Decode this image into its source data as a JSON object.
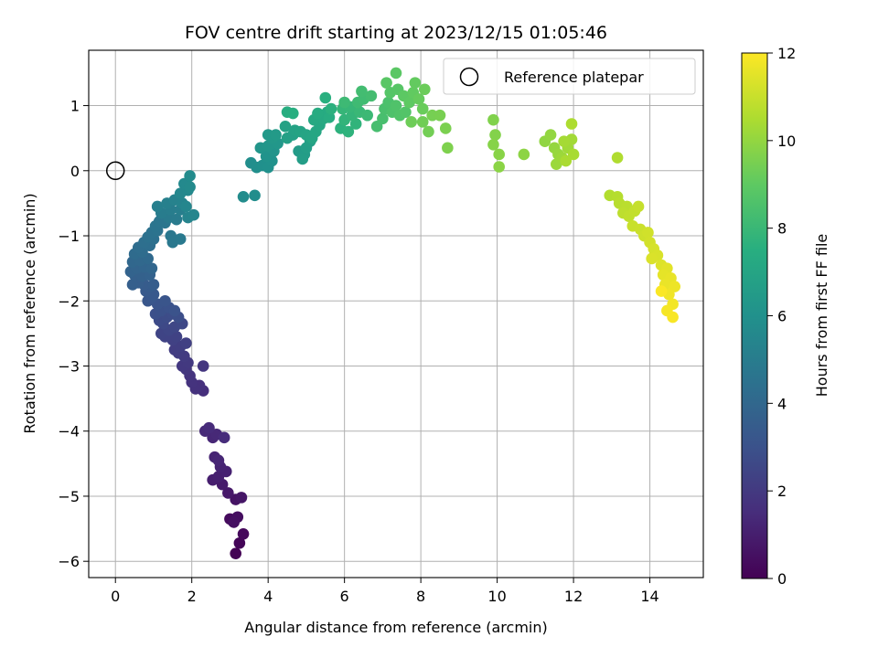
{
  "chart_data": {
    "type": "scatter",
    "title": "FOV centre drift starting at 2023/12/15 01:05:46",
    "xlabel": "Angular distance from reference (arcmin)",
    "ylabel": "Rotation from reference (arcmin)",
    "xlim": [
      -0.7,
      15.4
    ],
    "ylim": [
      -6.25,
      1.85
    ],
    "xticks": [
      0,
      2,
      4,
      6,
      8,
      10,
      12,
      14
    ],
    "yticks": [
      1,
      0,
      -1,
      -2,
      -3,
      -4,
      -5,
      -6
    ],
    "grid": true,
    "legend": {
      "placement": "top-right",
      "entries": [
        {
          "label": "Reference platepar",
          "marker": "open-circle"
        }
      ]
    },
    "reference_point": {
      "x": 0,
      "y": 0
    },
    "colorbar": {
      "label": "Hours from first FF file",
      "colormap": "viridis",
      "range": [
        0,
        12
      ],
      "ticks": [
        0,
        2,
        4,
        6,
        8,
        10,
        12
      ]
    },
    "points": [
      {
        "x": 3.15,
        "y": -5.88,
        "c": 0.05
      },
      {
        "x": 3.25,
        "y": -5.72,
        "c": 0.15
      },
      {
        "x": 3.35,
        "y": -5.58,
        "c": 0.25
      },
      {
        "x": 3.0,
        "y": -5.35,
        "c": 0.35
      },
      {
        "x": 3.2,
        "y": -5.32,
        "c": 0.45
      },
      {
        "x": 3.1,
        "y": -5.4,
        "c": 0.5
      },
      {
        "x": 3.15,
        "y": -5.05,
        "c": 0.6
      },
      {
        "x": 3.3,
        "y": -5.02,
        "c": 0.7
      },
      {
        "x": 2.95,
        "y": -4.95,
        "c": 0.8
      },
      {
        "x": 2.8,
        "y": -4.82,
        "c": 0.9
      },
      {
        "x": 2.55,
        "y": -4.75,
        "c": 1.0
      },
      {
        "x": 2.7,
        "y": -4.7,
        "c": 1.05
      },
      {
        "x": 2.9,
        "y": -4.62,
        "c": 1.1
      },
      {
        "x": 2.75,
        "y": -4.55,
        "c": 1.15
      },
      {
        "x": 2.6,
        "y": -4.4,
        "c": 1.2
      },
      {
        "x": 2.7,
        "y": -4.45,
        "c": 1.25
      },
      {
        "x": 2.55,
        "y": -4.1,
        "c": 1.3
      },
      {
        "x": 2.65,
        "y": -4.05,
        "c": 1.35
      },
      {
        "x": 2.35,
        "y": -4.0,
        "c": 1.4
      },
      {
        "x": 2.45,
        "y": -3.95,
        "c": 1.45
      },
      {
        "x": 2.85,
        "y": -4.1,
        "c": 1.5
      },
      {
        "x": 2.3,
        "y": -3.38,
        "c": 1.6
      },
      {
        "x": 2.2,
        "y": -3.3,
        "c": 1.65
      },
      {
        "x": 2.1,
        "y": -3.35,
        "c": 1.7
      },
      {
        "x": 2.0,
        "y": -3.25,
        "c": 1.75
      },
      {
        "x": 1.95,
        "y": -3.15,
        "c": 1.8
      },
      {
        "x": 2.3,
        "y": -3.0,
        "c": 1.85
      },
      {
        "x": 1.85,
        "y": -3.05,
        "c": 1.9
      },
      {
        "x": 1.75,
        "y": -3.0,
        "c": 1.95
      },
      {
        "x": 1.9,
        "y": -2.95,
        "c": 2.0
      },
      {
        "x": 1.8,
        "y": -2.85,
        "c": 2.05
      },
      {
        "x": 1.65,
        "y": -2.8,
        "c": 2.1
      },
      {
        "x": 1.55,
        "y": -2.75,
        "c": 2.15
      },
      {
        "x": 1.7,
        "y": -2.7,
        "c": 2.2
      },
      {
        "x": 1.85,
        "y": -2.65,
        "c": 2.25
      },
      {
        "x": 1.5,
        "y": -2.6,
        "c": 2.3
      },
      {
        "x": 1.6,
        "y": -2.55,
        "c": 2.35
      },
      {
        "x": 1.3,
        "y": -2.55,
        "c": 2.4
      },
      {
        "x": 1.2,
        "y": -2.5,
        "c": 2.45
      },
      {
        "x": 1.4,
        "y": -2.45,
        "c": 2.5
      },
      {
        "x": 1.55,
        "y": -2.4,
        "c": 2.55
      },
      {
        "x": 1.75,
        "y": -2.35,
        "c": 2.6
      },
      {
        "x": 1.25,
        "y": -2.35,
        "c": 2.65
      },
      {
        "x": 1.15,
        "y": -2.3,
        "c": 2.7
      },
      {
        "x": 1.35,
        "y": -2.25,
        "c": 2.75
      },
      {
        "x": 1.5,
        "y": -2.2,
        "c": 2.8
      },
      {
        "x": 1.65,
        "y": -2.25,
        "c": 2.85
      },
      {
        "x": 1.05,
        "y": -2.2,
        "c": 2.9
      },
      {
        "x": 1.2,
        "y": -2.15,
        "c": 2.95
      },
      {
        "x": 1.4,
        "y": -2.1,
        "c": 3.0
      },
      {
        "x": 1.55,
        "y": -2.15,
        "c": 3.05
      },
      {
        "x": 1.1,
        "y": -2.05,
        "c": 3.1
      },
      {
        "x": 1.3,
        "y": -2.0,
        "c": 3.15
      },
      {
        "x": 0.85,
        "y": -2.0,
        "c": 3.2
      },
      {
        "x": 0.95,
        "y": -1.95,
        "c": 3.25
      },
      {
        "x": 1.0,
        "y": -1.9,
        "c": 3.3
      },
      {
        "x": 0.8,
        "y": -1.85,
        "c": 3.35
      },
      {
        "x": 0.9,
        "y": -1.78,
        "c": 3.4
      },
      {
        "x": 0.75,
        "y": -1.75,
        "c": 3.45
      },
      {
        "x": 1.0,
        "y": -1.75,
        "c": 3.5
      },
      {
        "x": 0.6,
        "y": -1.72,
        "c": 3.55
      },
      {
        "x": 0.45,
        "y": -1.75,
        "c": 3.6
      },
      {
        "x": 0.5,
        "y": -1.6,
        "c": 3.65
      },
      {
        "x": 0.7,
        "y": -1.62,
        "c": 3.7
      },
      {
        "x": 0.9,
        "y": -1.6,
        "c": 3.75
      },
      {
        "x": 0.4,
        "y": -1.55,
        "c": 3.8
      },
      {
        "x": 0.55,
        "y": -1.5,
        "c": 3.85
      },
      {
        "x": 0.75,
        "y": -1.48,
        "c": 3.9
      },
      {
        "x": 0.95,
        "y": -1.5,
        "c": 3.95
      },
      {
        "x": 0.45,
        "y": -1.4,
        "c": 4.0
      },
      {
        "x": 0.65,
        "y": -1.38,
        "c": 4.05
      },
      {
        "x": 0.85,
        "y": -1.35,
        "c": 4.1
      },
      {
        "x": 0.5,
        "y": -1.28,
        "c": 4.15
      },
      {
        "x": 0.7,
        "y": -1.25,
        "c": 4.2
      },
      {
        "x": 0.6,
        "y": -1.18,
        "c": 4.25
      },
      {
        "x": 0.9,
        "y": -1.15,
        "c": 4.3
      },
      {
        "x": 0.75,
        "y": -1.1,
        "c": 4.35
      },
      {
        "x": 1.0,
        "y": -1.05,
        "c": 4.4
      },
      {
        "x": 0.85,
        "y": -1.02,
        "c": 4.45
      },
      {
        "x": 0.95,
        "y": -0.95,
        "c": 4.5
      },
      {
        "x": 1.1,
        "y": -0.92,
        "c": 4.55
      },
      {
        "x": 1.05,
        "y": -0.85,
        "c": 4.6
      },
      {
        "x": 1.15,
        "y": -0.78,
        "c": 4.65
      },
      {
        "x": 1.3,
        "y": -0.8,
        "c": 4.7
      },
      {
        "x": 1.45,
        "y": -1.0,
        "c": 4.75
      },
      {
        "x": 1.5,
        "y": -1.1,
        "c": 4.8
      },
      {
        "x": 1.7,
        "y": -1.05,
        "c": 4.85
      },
      {
        "x": 1.4,
        "y": -0.72,
        "c": 4.9
      },
      {
        "x": 1.6,
        "y": -0.75,
        "c": 4.95
      },
      {
        "x": 1.2,
        "y": -0.65,
        "c": 5.0
      },
      {
        "x": 1.45,
        "y": -0.6,
        "c": 5.05
      },
      {
        "x": 1.7,
        "y": -0.6,
        "c": 5.1
      },
      {
        "x": 1.1,
        "y": -0.55,
        "c": 5.15
      },
      {
        "x": 1.35,
        "y": -0.5,
        "c": 5.2
      },
      {
        "x": 1.55,
        "y": -0.45,
        "c": 5.25
      },
      {
        "x": 1.75,
        "y": -0.5,
        "c": 5.3
      },
      {
        "x": 1.9,
        "y": -0.72,
        "c": 5.35
      },
      {
        "x": 2.05,
        "y": -0.68,
        "c": 5.4
      },
      {
        "x": 1.85,
        "y": -0.55,
        "c": 5.45
      },
      {
        "x": 1.7,
        "y": -0.35,
        "c": 5.5
      },
      {
        "x": 1.9,
        "y": -0.3,
        "c": 5.55
      },
      {
        "x": 1.8,
        "y": -0.2,
        "c": 5.6
      },
      {
        "x": 1.95,
        "y": -0.25,
        "c": 5.65
      },
      {
        "x": 1.95,
        "y": -0.08,
        "c": 5.7
      },
      {
        "x": 3.35,
        "y": -0.4,
        "c": 5.75
      },
      {
        "x": 3.65,
        "y": -0.38,
        "c": 5.8
      },
      {
        "x": 3.55,
        "y": 0.12,
        "c": 5.85
      },
      {
        "x": 3.7,
        "y": 0.05,
        "c": 5.9
      },
      {
        "x": 3.85,
        "y": 0.08,
        "c": 5.95
      },
      {
        "x": 4.0,
        "y": 0.05,
        "c": 6.0
      },
      {
        "x": 4.1,
        "y": 0.15,
        "c": 6.05
      },
      {
        "x": 3.95,
        "y": 0.22,
        "c": 6.1
      },
      {
        "x": 4.15,
        "y": 0.3,
        "c": 6.15
      },
      {
        "x": 3.8,
        "y": 0.35,
        "c": 6.2
      },
      {
        "x": 4.0,
        "y": 0.38,
        "c": 6.25
      },
      {
        "x": 4.25,
        "y": 0.42,
        "c": 6.3
      },
      {
        "x": 4.1,
        "y": 0.5,
        "c": 6.35
      },
      {
        "x": 4.0,
        "y": 0.55,
        "c": 6.4
      },
      {
        "x": 4.2,
        "y": 0.55,
        "c": 6.45
      },
      {
        "x": 4.8,
        "y": 0.3,
        "c": 6.5
      },
      {
        "x": 4.95,
        "y": 0.25,
        "c": 6.55
      },
      {
        "x": 4.9,
        "y": 0.18,
        "c": 6.6
      },
      {
        "x": 5.0,
        "y": 0.35,
        "c": 6.65
      },
      {
        "x": 5.1,
        "y": 0.45,
        "c": 6.7
      },
      {
        "x": 4.5,
        "y": 0.5,
        "c": 6.75
      },
      {
        "x": 4.65,
        "y": 0.55,
        "c": 6.8
      },
      {
        "x": 4.45,
        "y": 0.68,
        "c": 6.85
      },
      {
        "x": 4.7,
        "y": 0.62,
        "c": 6.9
      },
      {
        "x": 4.85,
        "y": 0.6,
        "c": 6.95
      },
      {
        "x": 5.0,
        "y": 0.55,
        "c": 7.0
      },
      {
        "x": 5.15,
        "y": 0.5,
        "c": 7.05
      },
      {
        "x": 5.25,
        "y": 0.6,
        "c": 7.1
      },
      {
        "x": 5.35,
        "y": 0.7,
        "c": 7.15
      },
      {
        "x": 5.2,
        "y": 0.78,
        "c": 7.2
      },
      {
        "x": 5.45,
        "y": 0.8,
        "c": 7.25
      },
      {
        "x": 5.55,
        "y": 0.9,
        "c": 7.3
      },
      {
        "x": 5.3,
        "y": 0.88,
        "c": 7.35
      },
      {
        "x": 5.6,
        "y": 0.82,
        "c": 7.4
      },
      {
        "x": 4.5,
        "y": 0.9,
        "c": 7.45
      },
      {
        "x": 4.65,
        "y": 0.88,
        "c": 7.5
      },
      {
        "x": 5.5,
        "y": 1.12,
        "c": 7.55
      },
      {
        "x": 5.65,
        "y": 0.95,
        "c": 7.6
      },
      {
        "x": 5.9,
        "y": 0.65,
        "c": 7.65
      },
      {
        "x": 6.1,
        "y": 0.6,
        "c": 7.7
      },
      {
        "x": 6.3,
        "y": 0.72,
        "c": 7.75
      },
      {
        "x": 6.0,
        "y": 0.78,
        "c": 7.8
      },
      {
        "x": 6.2,
        "y": 0.85,
        "c": 7.85
      },
      {
        "x": 5.95,
        "y": 0.95,
        "c": 7.9
      },
      {
        "x": 6.15,
        "y": 0.98,
        "c": 7.95
      },
      {
        "x": 6.4,
        "y": 0.9,
        "c": 8.0
      },
      {
        "x": 6.6,
        "y": 0.85,
        "c": 8.05
      },
      {
        "x": 6.0,
        "y": 1.05,
        "c": 8.1
      },
      {
        "x": 6.35,
        "y": 1.05,
        "c": 8.15
      },
      {
        "x": 6.5,
        "y": 1.1,
        "c": 8.2
      },
      {
        "x": 6.45,
        "y": 1.22,
        "c": 8.25
      },
      {
        "x": 6.7,
        "y": 1.15,
        "c": 8.3
      },
      {
        "x": 6.85,
        "y": 0.68,
        "c": 8.35
      },
      {
        "x": 7.0,
        "y": 0.8,
        "c": 8.4
      },
      {
        "x": 7.05,
        "y": 0.95,
        "c": 8.45
      },
      {
        "x": 7.15,
        "y": 1.05,
        "c": 8.5
      },
      {
        "x": 7.25,
        "y": 0.9,
        "c": 8.55
      },
      {
        "x": 7.35,
        "y": 1.0,
        "c": 8.6
      },
      {
        "x": 7.45,
        "y": 0.85,
        "c": 8.65
      },
      {
        "x": 7.6,
        "y": 0.9,
        "c": 8.7
      },
      {
        "x": 7.2,
        "y": 1.2,
        "c": 8.75
      },
      {
        "x": 7.4,
        "y": 1.25,
        "c": 8.8
      },
      {
        "x": 7.1,
        "y": 1.35,
        "c": 8.85
      },
      {
        "x": 7.35,
        "y": 1.5,
        "c": 8.9
      },
      {
        "x": 7.55,
        "y": 1.15,
        "c": 8.95
      },
      {
        "x": 7.7,
        "y": 1.05,
        "c": 9.0
      },
      {
        "x": 7.8,
        "y": 1.2,
        "c": 9.05
      },
      {
        "x": 7.85,
        "y": 1.35,
        "c": 9.1
      },
      {
        "x": 7.95,
        "y": 1.1,
        "c": 9.15
      },
      {
        "x": 8.05,
        "y": 0.95,
        "c": 9.2
      },
      {
        "x": 8.1,
        "y": 1.25,
        "c": 9.25
      },
      {
        "x": 7.75,
        "y": 0.75,
        "c": 9.3
      },
      {
        "x": 8.05,
        "y": 0.75,
        "c": 9.35
      },
      {
        "x": 8.2,
        "y": 0.6,
        "c": 9.4
      },
      {
        "x": 8.3,
        "y": 0.85,
        "c": 9.45
      },
      {
        "x": 8.5,
        "y": 0.85,
        "c": 9.5
      },
      {
        "x": 8.65,
        "y": 0.65,
        "c": 9.55
      },
      {
        "x": 8.7,
        "y": 0.35,
        "c": 9.6
      },
      {
        "x": 9.9,
        "y": 0.78,
        "c": 9.65
      },
      {
        "x": 9.95,
        "y": 0.55,
        "c": 9.7
      },
      {
        "x": 9.9,
        "y": 0.4,
        "c": 9.75
      },
      {
        "x": 10.05,
        "y": 0.25,
        "c": 9.8
      },
      {
        "x": 10.05,
        "y": 0.06,
        "c": 9.85
      },
      {
        "x": 10.7,
        "y": 0.25,
        "c": 9.9
      },
      {
        "x": 11.25,
        "y": 0.45,
        "c": 9.95
      },
      {
        "x": 11.4,
        "y": 0.55,
        "c": 10.0
      },
      {
        "x": 11.5,
        "y": 0.35,
        "c": 10.05
      },
      {
        "x": 11.6,
        "y": 0.25,
        "c": 10.1
      },
      {
        "x": 11.55,
        "y": 0.1,
        "c": 10.15
      },
      {
        "x": 11.7,
        "y": 0.2,
        "c": 10.2
      },
      {
        "x": 11.85,
        "y": 0.35,
        "c": 10.25
      },
      {
        "x": 11.95,
        "y": 0.48,
        "c": 10.3
      },
      {
        "x": 11.75,
        "y": 0.45,
        "c": 10.35
      },
      {
        "x": 12.0,
        "y": 0.25,
        "c": 10.4
      },
      {
        "x": 11.8,
        "y": 0.15,
        "c": 10.45
      },
      {
        "x": 11.95,
        "y": 0.72,
        "c": 10.5
      },
      {
        "x": 13.15,
        "y": 0.2,
        "c": 10.55
      },
      {
        "x": 12.95,
        "y": -0.38,
        "c": 10.6
      },
      {
        "x": 13.15,
        "y": -0.4,
        "c": 10.65
      },
      {
        "x": 13.2,
        "y": -0.5,
        "c": 10.7
      },
      {
        "x": 13.4,
        "y": -0.55,
        "c": 10.75
      },
      {
        "x": 13.3,
        "y": -0.65,
        "c": 10.8
      },
      {
        "x": 13.45,
        "y": -0.7,
        "c": 10.85
      },
      {
        "x": 13.6,
        "y": -0.62,
        "c": 10.9
      },
      {
        "x": 13.7,
        "y": -0.55,
        "c": 10.95
      },
      {
        "x": 13.55,
        "y": -0.85,
        "c": 11.0
      },
      {
        "x": 13.75,
        "y": -0.9,
        "c": 11.05
      },
      {
        "x": 13.85,
        "y": -1.0,
        "c": 11.1
      },
      {
        "x": 13.95,
        "y": -0.95,
        "c": 11.15
      },
      {
        "x": 14.0,
        "y": -1.1,
        "c": 11.2
      },
      {
        "x": 14.1,
        "y": -1.2,
        "c": 11.25
      },
      {
        "x": 14.2,
        "y": -1.3,
        "c": 11.3
      },
      {
        "x": 14.05,
        "y": -1.35,
        "c": 11.35
      },
      {
        "x": 14.3,
        "y": -1.45,
        "c": 11.4
      },
      {
        "x": 14.45,
        "y": -1.5,
        "c": 11.5
      },
      {
        "x": 14.35,
        "y": -1.6,
        "c": 11.55
      },
      {
        "x": 14.55,
        "y": -1.65,
        "c": 11.6
      },
      {
        "x": 14.4,
        "y": -1.75,
        "c": 11.65
      },
      {
        "x": 14.65,
        "y": -1.78,
        "c": 11.7
      },
      {
        "x": 14.5,
        "y": -1.9,
        "c": 11.75
      },
      {
        "x": 14.6,
        "y": -2.05,
        "c": 11.8
      },
      {
        "x": 14.45,
        "y": -2.15,
        "c": 11.85
      },
      {
        "x": 14.6,
        "y": -2.25,
        "c": 11.9
      },
      {
        "x": 14.3,
        "y": -1.85,
        "c": 11.95
      }
    ]
  }
}
